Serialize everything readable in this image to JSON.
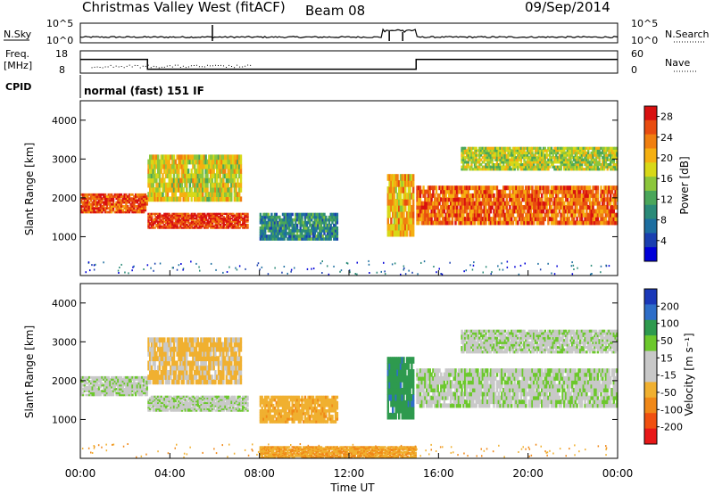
{
  "header": {
    "station": "Christmas Valley West (fitACF)",
    "beam": "Beam 08",
    "date": "09/Sep/2014"
  },
  "noise_panel": {
    "left_label": "N.Sky",
    "right_label": "N.Search",
    "left_ticks": [
      "10^5",
      "10^0"
    ],
    "right_ticks": [
      "10^5",
      "10^0"
    ],
    "sky_base": 1.0,
    "spikes": [
      {
        "x": 5.9,
        "h": 0.9
      },
      {
        "x": 13.8,
        "h": 0.55
      },
      {
        "x": 14.4,
        "h": 0.5
      }
    ]
  },
  "freq_panel": {
    "left_label_1": "Freq.",
    "left_label_2": "[MHz]",
    "right_label": "Nave",
    "left_ticks": [
      "18",
      "8"
    ],
    "right_ticks": [
      "60",
      "0"
    ],
    "freq_steps": [
      [
        0,
        15
      ],
      [
        3,
        10
      ],
      [
        15,
        15
      ],
      [
        24,
        15
      ]
    ]
  },
  "cpid": {
    "label": "CPID",
    "value": "normal (fast) 151 IF"
  },
  "chart_data": [
    {
      "type": "heatmap",
      "name": "power",
      "xlabel": "Time UT",
      "ylabel": "Slant Range [km]",
      "xlim": [
        0,
        24
      ],
      "ylim": [
        0,
        4500
      ],
      "yticks": [
        "1000",
        "2000",
        "3000",
        "4000"
      ],
      "colorbar": {
        "label": "Power [dB]",
        "ticks": [
          "4",
          "8",
          "12",
          "16",
          "20",
          "24",
          "28"
        ],
        "colors": [
          "#0000d8",
          "#1a3fb0",
          "#1d6ea0",
          "#2a8a78",
          "#4aa65a",
          "#8cc63c",
          "#d8d818",
          "#f5b011",
          "#f07f10",
          "#e84c10",
          "#d81010"
        ]
      },
      "bands": [
        {
          "t0": 0.0,
          "t1": 3.0,
          "r0": 1600,
          "r1": 2100,
          "level": 0.9
        },
        {
          "t0": 3.0,
          "t1": 7.5,
          "r0": 1200,
          "r1": 1600,
          "level": 0.95
        },
        {
          "t0": 3.0,
          "t1": 7.2,
          "r0": 1900,
          "r1": 3100,
          "level": 0.6
        },
        {
          "t0": 8.0,
          "t1": 11.5,
          "r0": 900,
          "r1": 1600,
          "level": 0.3
        },
        {
          "t0": 15.0,
          "t1": 24.0,
          "r0": 1300,
          "r1": 2300,
          "level": 0.85
        },
        {
          "t0": 17.0,
          "t1": 24.0,
          "r0": 2700,
          "r1": 3300,
          "level": 0.55
        },
        {
          "t0": 13.7,
          "t1": 14.9,
          "r0": 1000,
          "r1": 2600,
          "level": 0.7
        }
      ]
    },
    {
      "type": "heatmap",
      "name": "velocity",
      "xlabel": "Time UT",
      "ylabel": "Slant Range [km]",
      "xlim": [
        0,
        24
      ],
      "ylim": [
        0,
        4500
      ],
      "xticks": [
        "00:00",
        "04:00",
        "08:00",
        "12:00",
        "16:00",
        "20:00",
        "00:00"
      ],
      "yticks": [
        "1000",
        "2000",
        "3000",
        "4000"
      ],
      "colorbar": {
        "label": "Velocity [m s⁻¹]",
        "ticks": [
          "200",
          "100",
          "50",
          "15",
          "-15",
          "-50",
          "-100",
          "-200"
        ],
        "colors": [
          "#1a38b8",
          "#2e6ec8",
          "#2e9a4e",
          "#6cc82c",
          "#c8c8c8",
          "#c8c8c8",
          "#f0b030",
          "#f08818",
          "#f05010",
          "#e81818"
        ]
      },
      "bands": [
        {
          "t0": 0.0,
          "t1": 3.0,
          "r0": 1600,
          "r1": 2100,
          "v": 0
        },
        {
          "t0": 3.0,
          "t1": 7.5,
          "r0": 1200,
          "r1": 1600,
          "v": 0
        },
        {
          "t0": 3.0,
          "t1": 7.2,
          "r0": 1900,
          "r1": 3100,
          "v": -40
        },
        {
          "t0": 8.0,
          "t1": 11.5,
          "r0": 900,
          "r1": 1600,
          "v": -60
        },
        {
          "t0": 15.0,
          "t1": 24.0,
          "r0": 1300,
          "r1": 2300,
          "v": 0
        },
        {
          "t0": 17.0,
          "t1": 24.0,
          "r0": 2700,
          "r1": 3300,
          "v": 0
        },
        {
          "t0": 13.7,
          "t1": 14.9,
          "r0": 1000,
          "r1": 2600,
          "v": 60
        },
        {
          "t0": 8.0,
          "t1": 15.0,
          "r0": 0,
          "r1": 300,
          "v": -70
        }
      ]
    }
  ]
}
